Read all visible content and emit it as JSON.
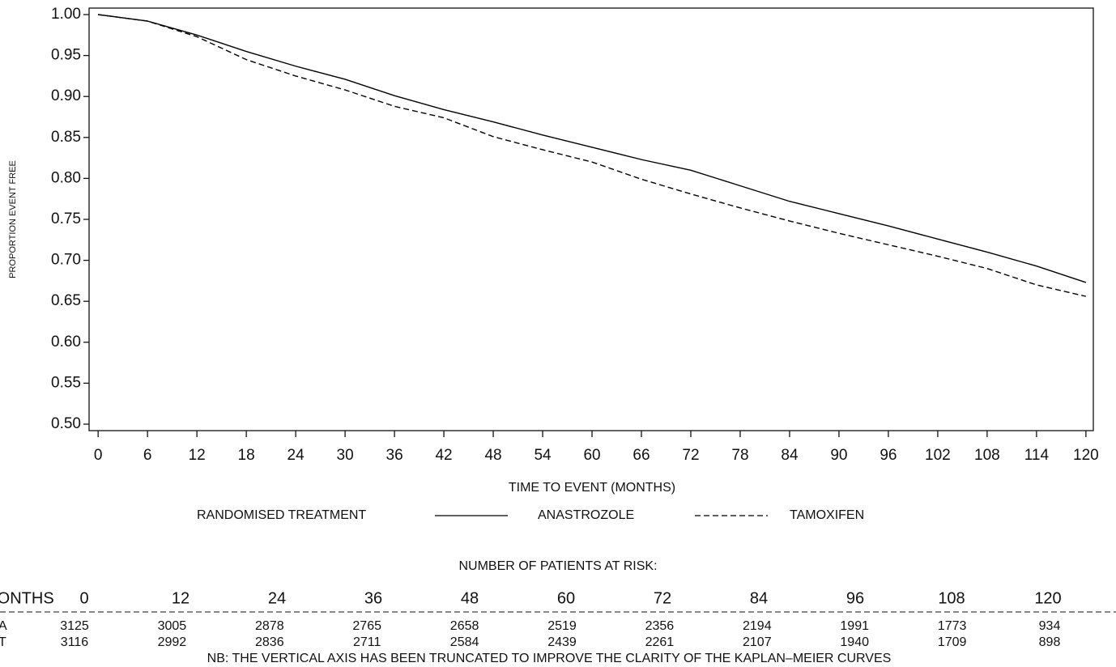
{
  "chart_data": {
    "type": "line",
    "x_label": "TIME TO EVENT (MONTHS)",
    "y_label": "PROPORTION EVENT FREE",
    "x": [
      0,
      6,
      12,
      18,
      24,
      30,
      36,
      42,
      48,
      54,
      60,
      66,
      72,
      78,
      84,
      90,
      96,
      102,
      108,
      114,
      120
    ],
    "series": [
      {
        "name": "ANASTROZOLE",
        "color": "#000000",
        "linestyle": "solid",
        "values": [
          1.0,
          0.992,
          0.975,
          0.955,
          0.937,
          0.921,
          0.901,
          0.884,
          0.869,
          0.853,
          0.838,
          0.823,
          0.81,
          0.791,
          0.772,
          0.757,
          0.742,
          0.726,
          0.71,
          0.693,
          0.673
        ]
      },
      {
        "name": "TAMOXIFEN",
        "color": "#000000",
        "linestyle": "dashed",
        "values": [
          1.0,
          0.992,
          0.973,
          0.945,
          0.925,
          0.908,
          0.888,
          0.874,
          0.851,
          0.835,
          0.82,
          0.799,
          0.781,
          0.764,
          0.748,
          0.733,
          0.719,
          0.705,
          0.69,
          0.67,
          0.656
        ]
      }
    ],
    "legend_title": "RANDOMISED TREATMENT",
    "xlim": [
      -1.1,
      120.9
    ],
    "ylim": [
      0.4921,
      1.0079
    ],
    "xticks": [
      0,
      6,
      12,
      18,
      24,
      30,
      36,
      42,
      48,
      54,
      60,
      66,
      72,
      78,
      84,
      90,
      96,
      102,
      108,
      114,
      120
    ],
    "yticks": [
      {
        "value": 0.5,
        "label": "0.50"
      },
      {
        "value": 0.55,
        "label": "0.55"
      },
      {
        "value": 0.6,
        "label": "0.60"
      },
      {
        "value": 0.65,
        "label": "0.65"
      },
      {
        "value": 0.7,
        "label": "0.70"
      },
      {
        "value": 0.75,
        "label": "0.75"
      },
      {
        "value": 0.8,
        "label": "0.80"
      },
      {
        "value": 0.85,
        "label": "0.85"
      },
      {
        "value": 0.9,
        "label": "0.90"
      },
      {
        "value": 0.95,
        "label": "0.95"
      },
      {
        "value": 1.0,
        "label": "1.00"
      }
    ],
    "grid": false
  },
  "risk_table": {
    "title": "NUMBER OF PATIENTS AT RISK:",
    "header_label": "MONTHS",
    "months": [
      0,
      12,
      24,
      36,
      48,
      60,
      72,
      84,
      96,
      108,
      120
    ],
    "rows": [
      {
        "label": "A",
        "values": [
          3125,
          3005,
          2878,
          2765,
          2658,
          2519,
          2356,
          2194,
          1991,
          1773,
          934
        ]
      },
      {
        "label": "T",
        "values": [
          3116,
          2992,
          2836,
          2711,
          2584,
          2439,
          2261,
          2107,
          1940,
          1709,
          898
        ]
      }
    ]
  },
  "footnote": "NB:  THE VERTICAL AXIS HAS BEEN TRUNCATED TO IMPROVE THE CLARITY OF THE KAPLAN–MEIER CURVES"
}
